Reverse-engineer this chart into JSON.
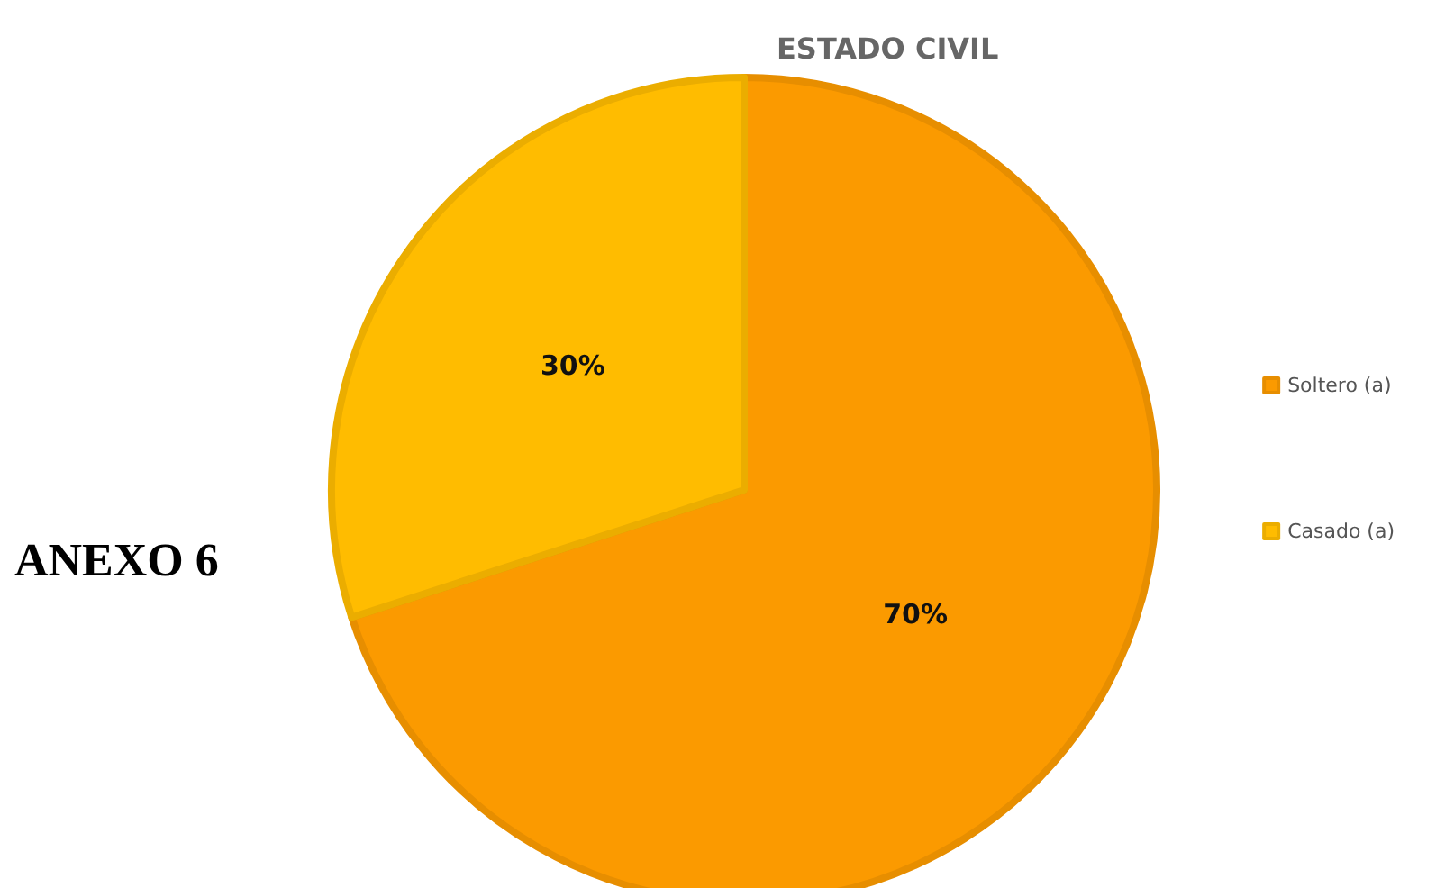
{
  "chart_data": {
    "type": "pie",
    "title": "ESTADO CIVIL",
    "categories": [
      "Soltero (a)",
      "Casado (a)"
    ],
    "values": [
      70,
      30
    ],
    "colors": [
      "#fb9a00",
      "#ffbc00"
    ],
    "value_labels": [
      "70%",
      "30%"
    ],
    "legend": "right",
    "annotations": [
      "ANEXO 6"
    ]
  }
}
